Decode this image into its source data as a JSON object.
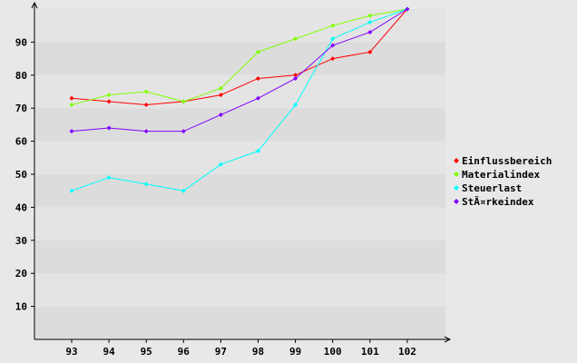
{
  "chart_data": {
    "type": "line",
    "title": "",
    "xlabel": "",
    "ylabel": "",
    "categories": [
      "93",
      "94",
      "95",
      "96",
      "97",
      "98",
      "99",
      "100",
      "101",
      "102"
    ],
    "ylim": [
      0,
      100
    ],
    "yticks": [
      10,
      20,
      30,
      40,
      50,
      60,
      70,
      80,
      90
    ],
    "grid": "horizontal alternating bands",
    "legend_position": "right",
    "series": [
      {
        "name": "Einflussbereich",
        "color": "#ff0000",
        "values": [
          73,
          72,
          71,
          72,
          74,
          79,
          80,
          85,
          87,
          100
        ]
      },
      {
        "name": "Materialindex",
        "color": "#80ff00",
        "values": [
          71,
          74,
          75,
          72,
          76,
          87,
          91,
          95,
          98,
          100
        ]
      },
      {
        "name": "Steuerlast",
        "color": "#00ffff",
        "values": [
          45,
          49,
          47,
          45,
          53,
          57,
          71,
          91,
          96,
          100
        ]
      },
      {
        "name": "StÃ¤rkeindex",
        "color": "#8000ff",
        "values": [
          63,
          64,
          63,
          63,
          68,
          73,
          79,
          89,
          93,
          100
        ]
      }
    ]
  },
  "colors": {
    "background": "#e8e8e8",
    "band_dark": "#dcdcdc",
    "band_light": "#e4e4e4",
    "axis": "#000000"
  }
}
